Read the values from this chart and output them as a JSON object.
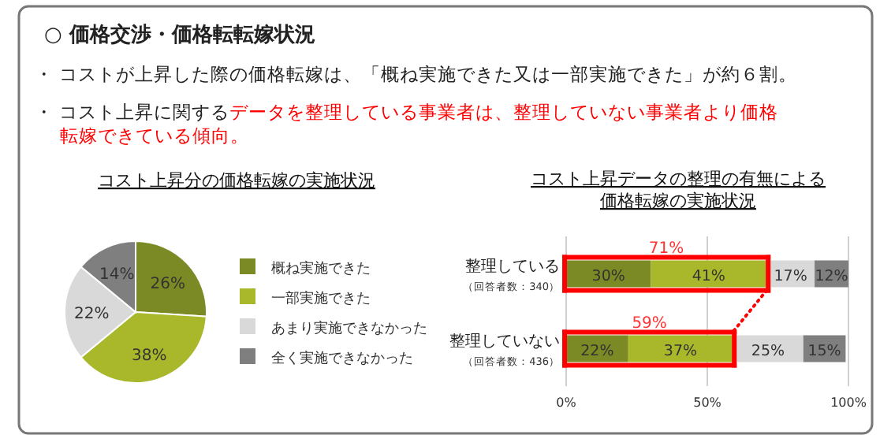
{
  "chart_data": [
    {
      "type": "pie",
      "title": "○ 価格交渉・価格転転嫁状況",
      "subtitle": "コスト上昇分の価格転嫁の実施状況",
      "annotations": [
        "・ コストが上昇した際の価格転嫁は、「概ね実施できた又は一部実施できた」が約６割。",
        "・ コスト上昇に関するデータを整理している事業者は、整理していない事業者より価格転嫁できている傾向。"
      ],
      "categories": [
        "概ね実施できた",
        "一部実施できた",
        "あまり実施できなかった",
        "全く実施できなかった"
      ],
      "values": [
        26,
        38,
        22,
        14
      ],
      "colors": [
        "#7b8a24",
        "#a8b82a",
        "#d9d9d9",
        "#7f7f7f"
      ],
      "value_labels": [
        "26%",
        "38%",
        "22%",
        "14%"
      ],
      "legend": "right"
    },
    {
      "type": "bar",
      "orientation": "horizontal",
      "stacked": true,
      "title": "コスト上昇データの整理の有無による価格転嫁の実施状況",
      "categories": [
        "整理している（回答者数：340）",
        "整理していない（回答者数：436）"
      ],
      "series": [
        {
          "color": "#7b8a24",
          "values": [
            30,
            22
          ],
          "value_labels": [
            "30%",
            "22%"
          ]
        },
        {
          "color": "#a8b82a",
          "values": [
            41,
            37
          ],
          "value_labels": [
            "41%",
            "37%"
          ]
        },
        {
          "color": "#d9d9d9",
          "values": [
            17,
            25
          ],
          "value_labels": [
            "17%",
            "25%"
          ]
        },
        {
          "color": "#7f7f7f",
          "values": [
            12,
            15
          ],
          "value_labels": [
            "12%",
            "15%"
          ]
        }
      ],
      "xlim": [
        0,
        100
      ],
      "xticks": [
        {
          "value": 0,
          "label": "0%"
        },
        {
          "value": 50,
          "label": "50%"
        },
        {
          "value": 100,
          "label": "100%"
        }
      ],
      "grid": "x",
      "annotations": [
        "71%",
        "59%"
      ]
    }
  ]
}
